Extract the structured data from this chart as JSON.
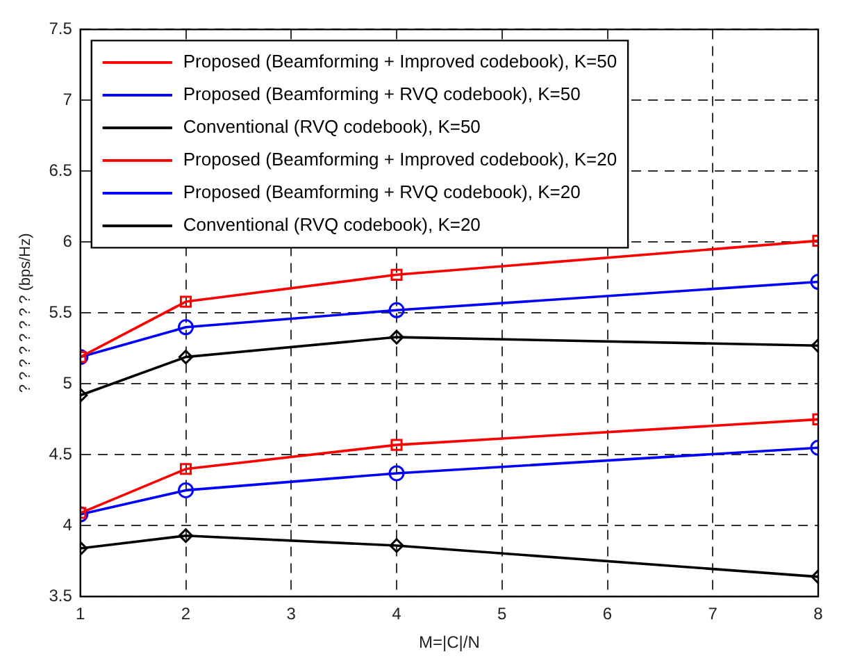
{
  "chart_data": {
    "type": "line",
    "xlabel": "M=|C|/N",
    "ylabel": "? ? ? ? ? ? ? ? (bps/Hz)",
    "x": [
      1,
      2,
      4,
      8
    ],
    "xlim": [
      1,
      8
    ],
    "xticks": [
      1,
      2,
      3,
      4,
      5,
      6,
      7,
      8
    ],
    "ylim": [
      3.5,
      7.5
    ],
    "yticks": [
      3.5,
      4,
      4.5,
      5,
      5.5,
      6,
      6.5,
      7,
      7.5
    ],
    "grid": true,
    "legend": "top left",
    "line_style": "solid",
    "series": [
      {
        "name": "Proposed (Beamforming + Improved codebook), K=50",
        "color": "#ff0000",
        "marker": "square",
        "values": [
          5.19,
          5.58,
          5.77,
          6.01
        ]
      },
      {
        "name": "Proposed (Beamforming + RVQ codebook), K=50",
        "color": "#0000ff",
        "marker": "circle",
        "values": [
          5.19,
          5.4,
          5.52,
          5.72
        ]
      },
      {
        "name": "Conventional (RVQ codebook), K=50",
        "color": "#000000",
        "marker": "diamond",
        "values": [
          4.92,
          5.19,
          5.33,
          5.27
        ]
      },
      {
        "name": "Proposed (Beamforming + Improved codebook), K=20",
        "color": "#ff0000",
        "marker": "square",
        "values": [
          4.09,
          4.4,
          4.57,
          4.75
        ]
      },
      {
        "name": "Proposed (Beamforming + RVQ codebook), K=20",
        "color": "#0000ff",
        "marker": "circle",
        "values": [
          4.08,
          4.25,
          4.37,
          4.55
        ]
      },
      {
        "name": "Conventional (RVQ codebook), K=20",
        "color": "#000000",
        "marker": "diamond",
        "values": [
          3.84,
          3.93,
          3.86,
          3.64
        ]
      }
    ]
  }
}
